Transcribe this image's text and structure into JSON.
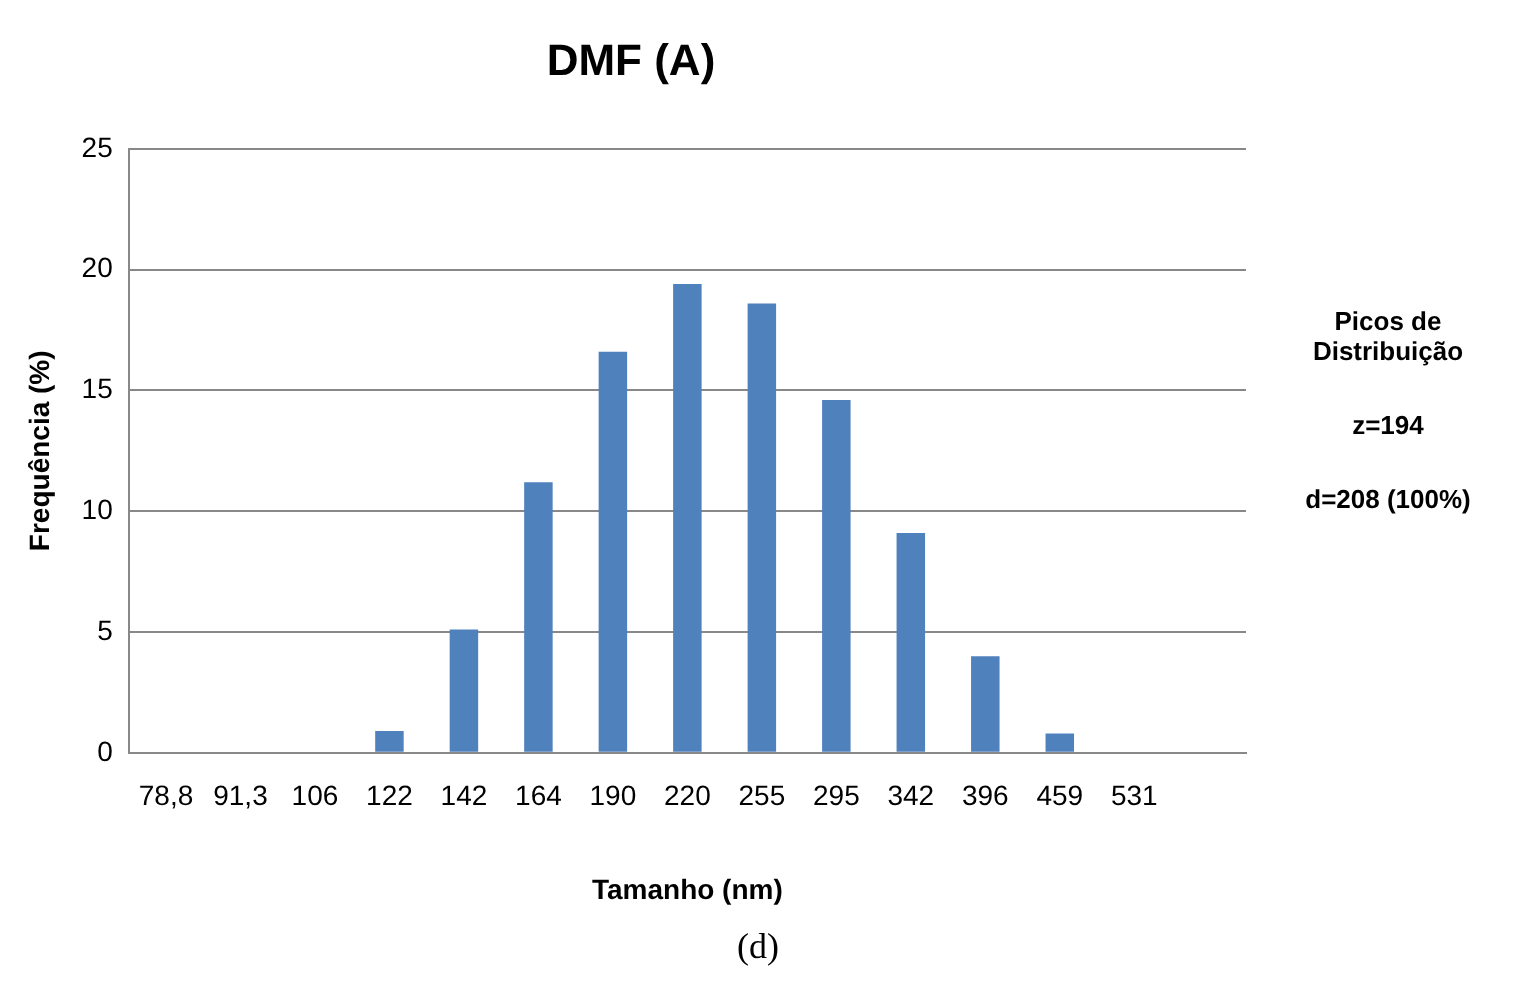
{
  "chart_data": {
    "type": "bar",
    "title": "DMF (A)",
    "xlabel": "Tamanho (nm)",
    "ylabel": "Frequência (%)",
    "categories": [
      "78,8",
      "91,3",
      "106",
      "122",
      "142",
      "164",
      "190",
      "220",
      "255",
      "295",
      "342",
      "396",
      "459",
      "531",
      null
    ],
    "values": [
      0,
      0,
      0,
      0.9,
      5.1,
      11.2,
      16.6,
      19.4,
      18.6,
      14.6,
      9.1,
      4.0,
      0.8,
      0,
      0
    ],
    "color": "#4f81bd",
    "ylim": [
      0,
      25
    ],
    "yticks": [
      0,
      5,
      10,
      15,
      20,
      25
    ],
    "grid": "y",
    "legend": false,
    "annotations": [
      "Picos de Distribuição",
      "z=194",
      "d=208 (100%)",
      "(d)"
    ]
  }
}
